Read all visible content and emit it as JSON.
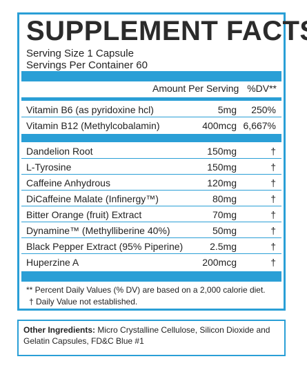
{
  "title": "SUPPLEMENT FACTS",
  "serving_size": "Serving Size 1 Capsule",
  "servings_per_container": "Servings Per Container 60",
  "header": {
    "amount": "Amount Per Serving",
    "dv": "%DV**"
  },
  "vitamins": [
    {
      "name": "Vitamin B6 (as pyridoxine hcl)",
      "amount": "5mg",
      "dv": "250%"
    },
    {
      "name": "Vitamin B12 (Methylcobalamin)",
      "amount": "400mcg",
      "dv": "6,667%"
    }
  ],
  "ingredients": [
    {
      "name": "Dandelion Root",
      "amount": "150mg",
      "dv": "†"
    },
    {
      "name": "L-Tyrosine",
      "amount": "150mg",
      "dv": "†"
    },
    {
      "name": "Caffeine Anhydrous",
      "amount": "120mg",
      "dv": "†"
    },
    {
      "name": "DiCaffeine Malate (Infinergy™)",
      "amount": "80mg",
      "dv": "†"
    },
    {
      "name": "Bitter Orange (fruit) Extract",
      "amount": "70mg",
      "dv": "†"
    },
    {
      "name": "Dynamine™ (Methylliberine 40%)",
      "amount": "50mg",
      "dv": "†"
    },
    {
      "name": "Black Pepper Extract (95% Piperine)",
      "amount": "2.5mg",
      "dv": "†"
    },
    {
      "name": "Huperzine A",
      "amount": "200mcg",
      "dv": "†"
    }
  ],
  "footnote_1": "** Percent Daily Values (% DV) are based on a 2,000 calorie diet.",
  "footnote_2": "† Daily Value not established.",
  "other_label": "Other Ingredients:",
  "other_text": "Micro Crystalline Cellulose, Silicon Dioxide and Gelatin Capsules, FD&C Blue #1",
  "colors": {
    "accent": "#2a9fd6",
    "text": "#222222"
  }
}
